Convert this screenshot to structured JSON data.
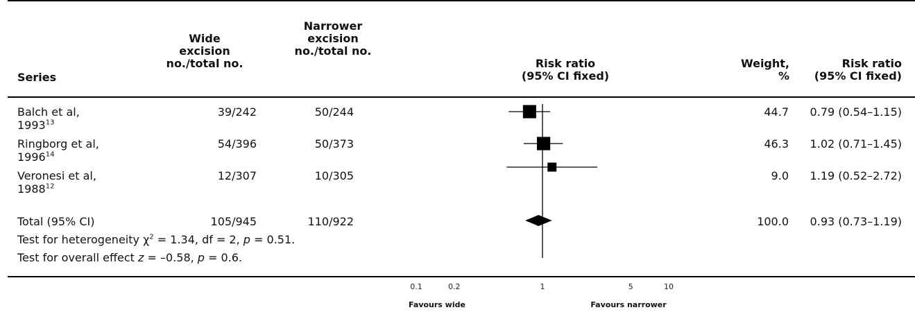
{
  "headers": {
    "series": "Series",
    "wide_line1": "Wide",
    "wide_line2": "excision",
    "wide_line3": "no./total no.",
    "narrow_line1": "Narrower",
    "narrow_line2": "excision",
    "narrow_line3": "no./total no.",
    "rr_line1": "Risk ratio",
    "rr_line2": "(95% CI fixed)",
    "weight_line1": "Weight,",
    "weight_line2": "%",
    "rr2_line1": "Risk ratio",
    "rr2_line2": "(95% CI fixed)"
  },
  "rows": [
    {
      "name_line1": "Balch et al,",
      "name_line2": "1993",
      "ref": "13",
      "wide": "39/242",
      "narrow": "50/244",
      "weight": "44.7",
      "ci": "0.79 (0.54–1.15)"
    },
    {
      "name_line1": "Ringborg et al,",
      "name_line2": "1996",
      "ref": "14",
      "wide": "54/396",
      "narrow": "50/373",
      "weight": "46.3",
      "ci": "1.02 (0.71–1.45)"
    },
    {
      "name_line1": "Veronesi et al,",
      "name_line2": "1988",
      "ref": "12",
      "wide": "12/307",
      "narrow": "10/305",
      "weight": "9.0",
      "ci": "1.19 (0.52–2.72)"
    }
  ],
  "total": {
    "label": "Total (95% CI)",
    "wide": "105/945",
    "narrow": "110/922",
    "weight": "100.0",
    "ci": "0.93 (0.73–1.19)"
  },
  "tests": {
    "heterogeneity_prefix": "Test for heterogeneity ",
    "chi": "χ",
    "chi_sup": "2",
    "heterogeneity_rest": " = 1.34, df = 2, ",
    "p_symbol": "p",
    "heterogeneity_p": " = 0.51.",
    "overall_prefix": "Test for overall effect ",
    "z_symbol": "z",
    "overall_mid": " = –0.58, ",
    "overall_p": " = 0.6."
  },
  "axis": {
    "ticks": [
      "0.1",
      "0.2",
      "1",
      "5",
      "10"
    ],
    "favours_left": "Favours wide",
    "favours_right": "Favours narrower"
  },
  "chart_data": {
    "type": "scatter",
    "scale": "log",
    "xlim": [
      0.1,
      10
    ],
    "xticks": [
      0.1,
      0.2,
      1,
      5,
      10
    ],
    "reference_line": 1,
    "points": [
      {
        "rr": 0.79,
        "lo": 0.54,
        "hi": 1.15,
        "weight": 44.7
      },
      {
        "rr": 1.02,
        "lo": 0.71,
        "hi": 1.45,
        "weight": 46.3
      },
      {
        "rr": 1.19,
        "lo": 0.52,
        "hi": 2.72,
        "weight": 9.0
      }
    ],
    "total": {
      "rr": 0.93,
      "lo": 0.73,
      "hi": 1.19
    },
    "colors": {
      "marker": "#000000",
      "line": "#000000"
    }
  }
}
